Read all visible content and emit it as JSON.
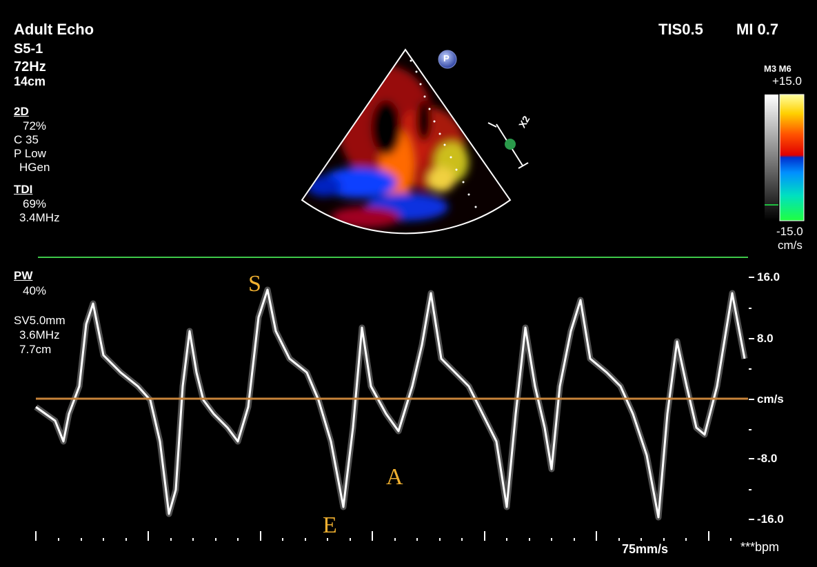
{
  "header": {
    "preset": "Adult Echo",
    "probe": "S5-1",
    "frame_rate": "72Hz",
    "depth": "14cm",
    "thermal_index": "TIS0.5",
    "mechanical_index": "MI 0.7"
  },
  "settings_2d": {
    "label": "2D",
    "gain": "72%",
    "compression": "C 35",
    "power": "P Low",
    "frequency_mode": "HGen"
  },
  "settings_tdi": {
    "label": "TDI",
    "gain": "69%",
    "frequency": "3.4MHz"
  },
  "colorbar": {
    "maps": "M3 M6",
    "max": "+15.0",
    "min": "-15.0",
    "unit": "cm/s"
  },
  "probe_marker": {
    "label": "P"
  },
  "zoom_marker": {
    "label": "X2"
  },
  "pw": {
    "label": "PW",
    "gain": "40%",
    "sample_volume": "SV5.0mm",
    "frequency": "3.6MHz",
    "depth": "7.7cm"
  },
  "velocity_scale": {
    "ticks": [
      "16.0",
      "8.0",
      "cm/s",
      "-8.0",
      "-16.0"
    ],
    "max": 16.0,
    "min": -16.0
  },
  "annotations": {
    "s_wave": "S",
    "e_wave": "E",
    "a_wave": "A"
  },
  "footer": {
    "sweep_speed": "75mm/s",
    "heart_rate": "***bpm"
  },
  "colors": {
    "baseline": "#c8843a",
    "separator": "#3ec84a",
    "annotation": "#f0b030",
    "sector_outline": "#ffffff"
  }
}
